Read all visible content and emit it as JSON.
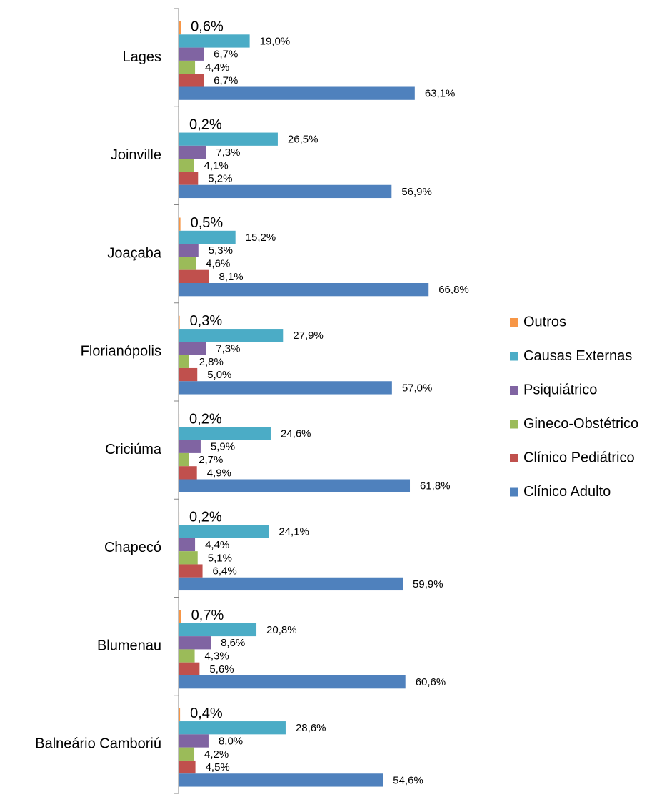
{
  "chart_data": {
    "type": "bar",
    "orientation": "horizontal",
    "categories": [
      "Lages",
      "Joinville",
      "Joaçaba",
      "Florianópolis",
      "Criciúma",
      "Chapecó",
      "Blumenau",
      "Balneário Camboriú"
    ],
    "xlim": [
      0,
      70
    ],
    "legend": "right",
    "series": [
      {
        "name": "Outros",
        "color": "#f79646",
        "values": [
          0.6,
          0.2,
          0.5,
          0.3,
          0.2,
          0.2,
          0.7,
          0.4
        ],
        "value_labels": [
          "0,6%",
          "0,2%",
          "0,5%",
          "0,3%",
          "0,2%",
          "0,2%",
          "0,7%",
          "0,4%"
        ]
      },
      {
        "name": "Causas Externas",
        "color": "#4bacc6",
        "values": [
          19.0,
          26.5,
          15.2,
          27.9,
          24.6,
          24.1,
          20.8,
          28.6
        ],
        "value_labels": [
          "19,0%",
          "26,5%",
          "15,2%",
          "27,9%",
          "24,6%",
          "24,1%",
          "20,8%",
          "28,6%"
        ]
      },
      {
        "name": "Psiquiátrico",
        "color": "#8064a2",
        "values": [
          6.7,
          7.3,
          5.3,
          7.3,
          5.9,
          4.4,
          8.6,
          8.0
        ],
        "value_labels": [
          "6,7%",
          "7,3%",
          "5,3%",
          "7,3%",
          "5,9%",
          "4,4%",
          "8,6%",
          "8,0%"
        ]
      },
      {
        "name": "Gineco-Obstétrico",
        "color": "#9bbb59",
        "values": [
          4.4,
          4.1,
          4.6,
          2.8,
          2.7,
          5.1,
          4.3,
          4.2
        ],
        "value_labels": [
          "4,4%",
          "4,1%",
          "4,6%",
          "2,8%",
          "2,7%",
          "5,1%",
          "4,3%",
          "4,2%"
        ]
      },
      {
        "name": "Clínico Pediátrico",
        "color": "#c0504d",
        "values": [
          6.7,
          5.2,
          8.1,
          5.0,
          4.9,
          6.4,
          5.6,
          4.5
        ],
        "value_labels": [
          "6,7%",
          "5,2%",
          "8,1%",
          "5,0%",
          "4,9%",
          "6,4%",
          "5,6%",
          "4,5%"
        ]
      },
      {
        "name": "Clínico Adulto",
        "color": "#4f81bd",
        "values": [
          63.1,
          56.9,
          66.8,
          57.0,
          61.8,
          59.9,
          60.6,
          54.6
        ],
        "value_labels": [
          "63,1%",
          "56,9%",
          "66,8%",
          "57,0%",
          "61,8%",
          "59,9%",
          "60,6%",
          "54,6%"
        ]
      }
    ]
  }
}
